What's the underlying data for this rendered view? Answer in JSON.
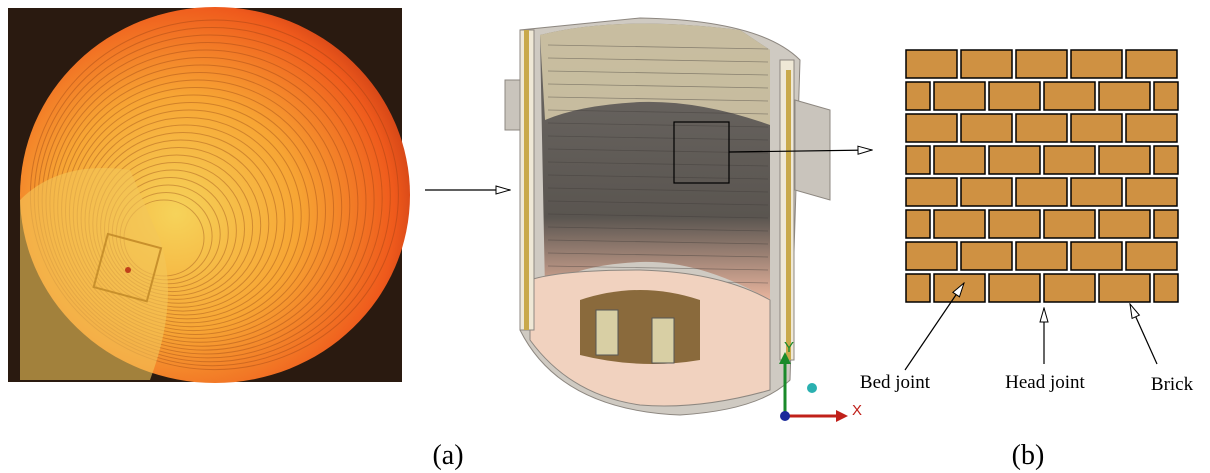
{
  "figure": {
    "panel_labels": [
      "(a)",
      "(b)"
    ],
    "axis_labels": {
      "y": "Y",
      "x": "X"
    },
    "annotations": [
      "Bed joint",
      "Head joint",
      "Brick"
    ]
  }
}
